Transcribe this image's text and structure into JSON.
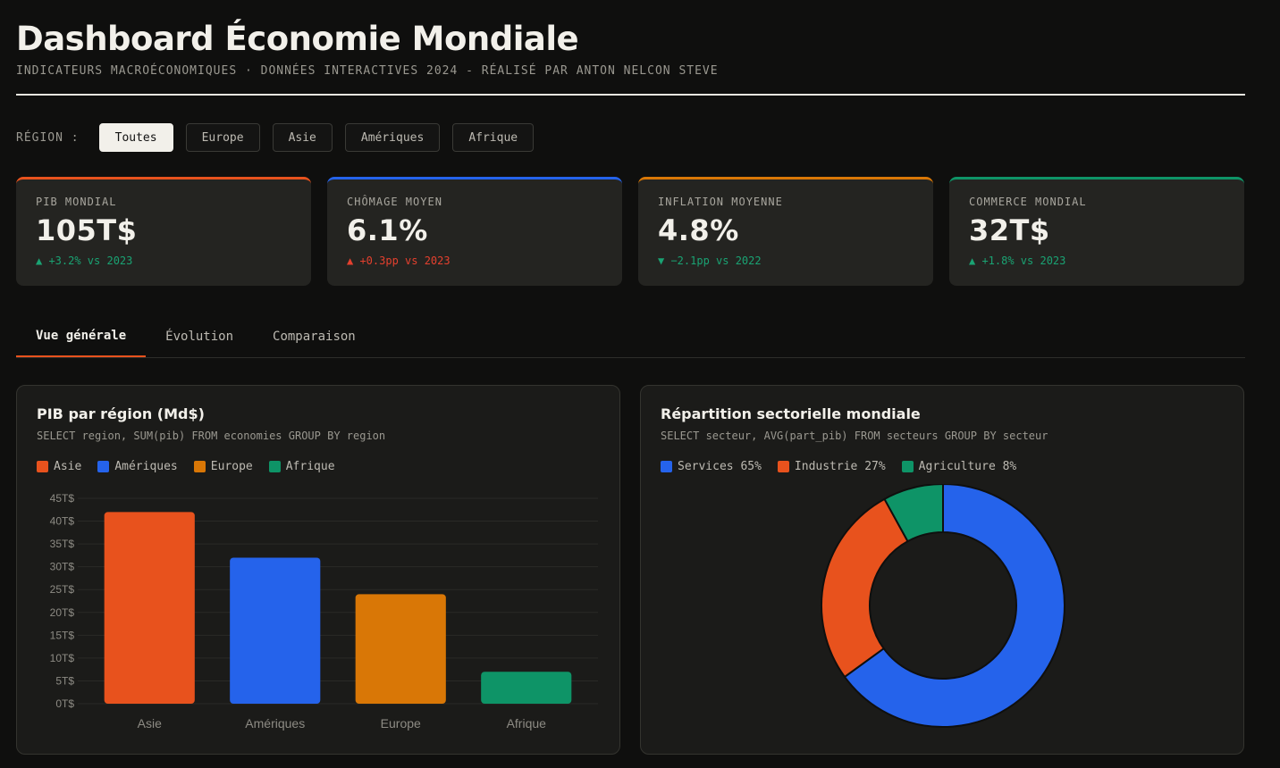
{
  "header": {
    "title": "Dashboard Économie Mondiale",
    "subtitle": "INDICATEURS MACROÉCONOMIQUES · DONNÉES INTERACTIVES 2024 - RÉALISÉ PAR ANTON NELCON STEVE"
  },
  "region_filter": {
    "label": "RÉGION :",
    "options": [
      "Toutes",
      "Europe",
      "Asie",
      "Amériques",
      "Afrique"
    ],
    "selected": "Toutes"
  },
  "kpis": [
    {
      "label": "PIB MONDIAL",
      "value": "105T$",
      "delta": "▲ +3.2% vs 2023",
      "accent": "#e8521d",
      "delta_color": "#1aa373"
    },
    {
      "label": "CHÔMAGE MOYEN",
      "value": "6.1%",
      "delta": "▲ +0.3pp vs 2023",
      "accent": "#2563eb",
      "delta_color": "#e5402e"
    },
    {
      "label": "INFLATION MOYENNE",
      "value": "4.8%",
      "delta": "▼ −2.1pp vs 2022",
      "accent": "#d97706",
      "delta_color": "#1aa373"
    },
    {
      "label": "COMMERCE MONDIAL",
      "value": "32T$",
      "delta": "▲ +1.8% vs 2023",
      "accent": "#0e9467",
      "delta_color": "#1aa373"
    }
  ],
  "tabs": [
    "Vue générale",
    "Évolution",
    "Comparaison"
  ],
  "active_tab": "Vue générale",
  "bar_card": {
    "title": "PIB par région (Md$)",
    "sql": "SELECT region, SUM(pib) FROM economies GROUP BY region",
    "legend": [
      {
        "label": "Asie",
        "color": "#e8521d"
      },
      {
        "label": "Amériques",
        "color": "#2563eb"
      },
      {
        "label": "Europe",
        "color": "#d97706"
      },
      {
        "label": "Afrique",
        "color": "#0e9467"
      }
    ]
  },
  "pie_card": {
    "title": "Répartition sectorielle mondiale",
    "sql": "SELECT secteur, AVG(part_pib) FROM secteurs GROUP BY secteur",
    "legend": [
      {
        "label": "Services 65%",
        "color": "#2563eb"
      },
      {
        "label": "Industrie 27%",
        "color": "#e8521d"
      },
      {
        "label": "Agriculture 8%",
        "color": "#0e9467"
      }
    ]
  },
  "chart_data": [
    {
      "type": "bar",
      "title": "PIB par région (Md$)",
      "categories": [
        "Asie",
        "Amériques",
        "Europe",
        "Afrique"
      ],
      "values": [
        42,
        32,
        24,
        7
      ],
      "colors": [
        "#e8521d",
        "#2563eb",
        "#d97706",
        "#0e9467"
      ],
      "ylim": [
        0,
        45
      ],
      "yticks": [
        "0T$",
        "5T$",
        "10T$",
        "15T$",
        "20T$",
        "25T$",
        "30T$",
        "35T$",
        "40T$",
        "45T$"
      ],
      "grid": true
    },
    {
      "type": "pie",
      "title": "Répartition sectorielle mondiale",
      "labels": [
        "Services",
        "Industrie",
        "Agriculture"
      ],
      "values": [
        65,
        27,
        8
      ],
      "colors": [
        "#2563eb",
        "#e8521d",
        "#0e9467"
      ],
      "donut": true
    }
  ]
}
